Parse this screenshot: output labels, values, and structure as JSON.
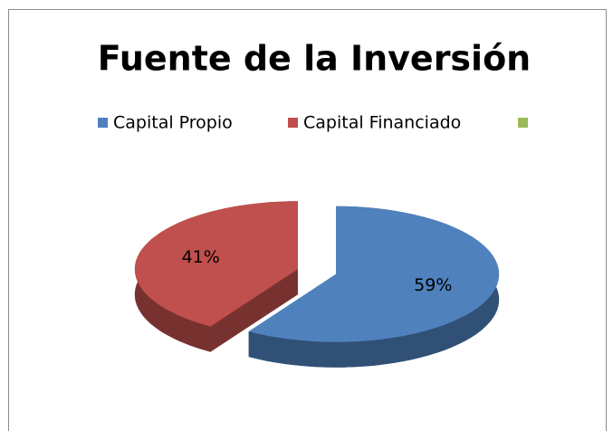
{
  "chart_data": {
    "type": "pie",
    "title": "Fuente de la Inversión",
    "categories": [
      "Capital Propio",
      "Capital Financiado",
      null
    ],
    "values": [
      59,
      41,
      null
    ],
    "value_labels": [
      "59%",
      "41%",
      null
    ],
    "colors": [
      "#4f81bd",
      "#c0504d",
      "#9bbb59"
    ],
    "legend": "top",
    "three_d": true
  }
}
